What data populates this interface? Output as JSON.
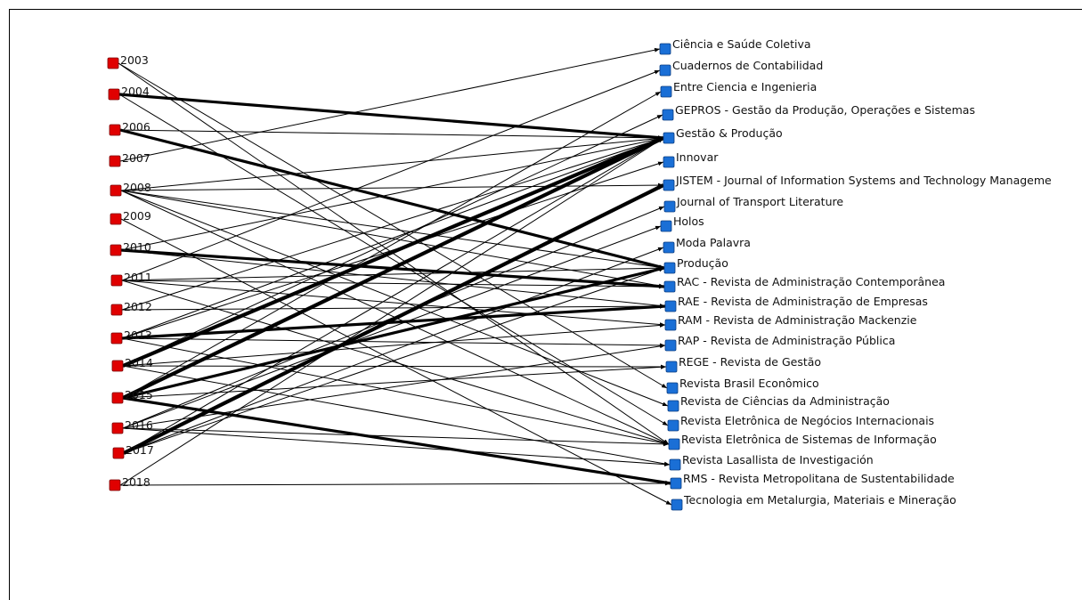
{
  "diagram": {
    "type": "bipartite-network",
    "colors": {
      "year_node": "#e00000",
      "journal_node": "#1a6fd6",
      "edge": "#000000"
    },
    "years": [
      "2003",
      "2004",
      "2006",
      "2007",
      "2008",
      "2009",
      "2010",
      "2011",
      "2012",
      "2013",
      "2014",
      "2015",
      "2016",
      "2017",
      "2018"
    ],
    "journals": [
      "Ciência e Saúde Coletiva",
      "Cuadernos de Contabilidad",
      "Entre Ciencia e Ingenieria",
      "GEPROS - Gestão da Produção, Operações e Sistemas",
      "Gestão & Produção",
      "Innovar",
      "JISTEM - Journal of Information Systems and Technology Manageme",
      "Journal of Transport Literature",
      "Holos",
      "Moda Palavra",
      "Produção",
      "RAC - Revista de Administração Contemporânea",
      "RAE - Revista de Administração de Empresas",
      "RAM - Revista de Administração Mackenzie",
      "RAP - Revista de Administração Pública",
      "REGE - Revista de Gestão",
      "Revista Brasil Econômico",
      "Revista de Ciências da Administração",
      "Revista Eletrônica de Negócios Internacionais",
      "Revista Eletrônica de Sistemas de Informação",
      "Revista Lasallista de Investigación",
      "RMS - Revista Metropolitana de Sustentabilidade",
      "Tecnologia em Metalurgia, Materiais e Mineração"
    ],
    "edges": [
      {
        "from": "2003",
        "to": "Revista Brasil Econômico",
        "weight": 1
      },
      {
        "from": "2003",
        "to": "Revista Eletrônica de Sistemas de Informação",
        "weight": 1
      },
      {
        "from": "2004",
        "to": "Gestão & Produção",
        "weight": 3
      },
      {
        "from": "2004",
        "to": "Revista Eletrônica de Negócios Internacionais",
        "weight": 1
      },
      {
        "from": "2006",
        "to": "Produção",
        "weight": 3
      },
      {
        "from": "2006",
        "to": "Gestão & Produção",
        "weight": 1
      },
      {
        "from": "2007",
        "to": "Ciência e Saúde Coletiva",
        "weight": 1
      },
      {
        "from": "2008",
        "to": "Gestão & Produção",
        "weight": 1
      },
      {
        "from": "2008",
        "to": "JISTEM - Journal of Information Systems and Technology Manageme",
        "weight": 1
      },
      {
        "from": "2008",
        "to": "RAC - Revista de Administração Contemporânea",
        "weight": 1
      },
      {
        "from": "2008",
        "to": "Revista de Ciências da Administração",
        "weight": 1
      },
      {
        "from": "2008",
        "to": "Revista Eletrônica de Sistemas de Informação",
        "weight": 1
      },
      {
        "from": "2008",
        "to": "Produção",
        "weight": 1
      },
      {
        "from": "2009",
        "to": "Tecnologia em Metalurgia, Materiais e Mineração",
        "weight": 1
      },
      {
        "from": "2010",
        "to": "RAC - Revista de Administração Contemporânea",
        "weight": 3
      },
      {
        "from": "2010",
        "to": "RAE - Revista de Administração de Empresas",
        "weight": 1
      },
      {
        "from": "2010",
        "to": "Gestão & Produção",
        "weight": 1
      },
      {
        "from": "2011",
        "to": "RAM - Revista de Administração Mackenzie",
        "weight": 1
      },
      {
        "from": "2011",
        "to": "Produção",
        "weight": 1
      },
      {
        "from": "2011",
        "to": "RAC - Revista de Administração Contemporânea",
        "weight": 1
      },
      {
        "from": "2011",
        "to": "Cuadernos de Contabilidad",
        "weight": 1
      },
      {
        "from": "2011",
        "to": "Revista Eletrônica de Sistemas de Informação",
        "weight": 1
      },
      {
        "from": "2012",
        "to": "Gestão & Produção",
        "weight": 1
      },
      {
        "from": "2012",
        "to": "RAE - Revista de Administração de Empresas",
        "weight": 1
      },
      {
        "from": "2013",
        "to": "RAE - Revista de Administração de Empresas",
        "weight": 3
      },
      {
        "from": "2013",
        "to": "Gestão & Produção",
        "weight": 1
      },
      {
        "from": "2013",
        "to": "RAP - Revista de Administração Pública",
        "weight": 1
      },
      {
        "from": "2013",
        "to": "Revista Eletrônica de Sistemas de Informação",
        "weight": 1
      },
      {
        "from": "2013",
        "to": "Innovar",
        "weight": 1
      },
      {
        "from": "2014",
        "to": "Gestão & Produção",
        "weight": 4
      },
      {
        "from": "2014",
        "to": "REGE - Revista de Gestão",
        "weight": 1
      },
      {
        "from": "2014",
        "to": "RAM - Revista de Administração Mackenzie",
        "weight": 1
      },
      {
        "from": "2014",
        "to": "GEPROS - Gestão da Produção, Operações e Sistemas",
        "weight": 1
      },
      {
        "from": "2014",
        "to": "Revista Lasallista de Investigación",
        "weight": 1
      },
      {
        "from": "2015",
        "to": "Gestão & Produção",
        "weight": 4
      },
      {
        "from": "2015",
        "to": "Produção",
        "weight": 3
      },
      {
        "from": "2015",
        "to": "RMS - Revista Metropolitana de Sustentabilidade",
        "weight": 3
      },
      {
        "from": "2015",
        "to": "Entre Ciencia e Ingenieria",
        "weight": 1
      },
      {
        "from": "2015",
        "to": "REGE - Revista de Gestão",
        "weight": 1
      },
      {
        "from": "2016",
        "to": "Revista Eletrônica de Sistemas de Informação",
        "weight": 1
      },
      {
        "from": "2016",
        "to": "Revista Lasallista de Investigación",
        "weight": 1
      },
      {
        "from": "2016",
        "to": "Holos",
        "weight": 1
      },
      {
        "from": "2016",
        "to": "Journal of Transport Literature",
        "weight": 1
      },
      {
        "from": "2016",
        "to": "RAP - Revista de Administração Pública",
        "weight": 1
      },
      {
        "from": "2017",
        "to": "JISTEM - Journal of Information Systems and Technology Manageme",
        "weight": 4
      },
      {
        "from": "2017",
        "to": "Gestão & Produção",
        "weight": 1
      },
      {
        "from": "2017",
        "to": "Moda Palavra",
        "weight": 1
      },
      {
        "from": "2017",
        "to": "Produção",
        "weight": 1
      },
      {
        "from": "2018",
        "to": "RMS - Revista Metropolitana de Sustentabilidade",
        "weight": 1
      },
      {
        "from": "2018",
        "to": "Gestão & Produção",
        "weight": 1
      }
    ]
  }
}
